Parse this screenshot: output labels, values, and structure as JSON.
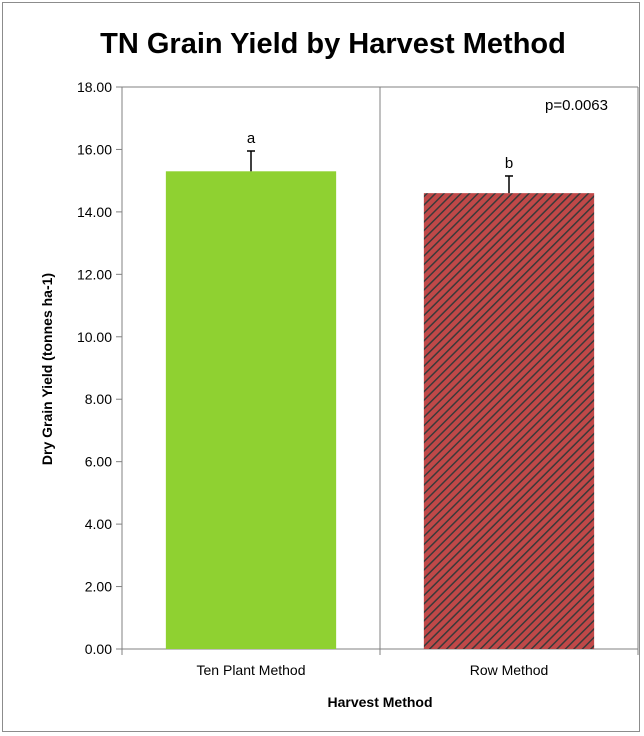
{
  "chart_data": {
    "type": "bar",
    "title": "TN Grain Yield by Harvest Method",
    "xlabel": "Harvest Method",
    "ylabel": "Dry Grain Yield (tonnes ha-1)",
    "categories": [
      "Ten Plant Method",
      "Row Method"
    ],
    "values": [
      15.3,
      14.6
    ],
    "errors": [
      0.65,
      0.55
    ],
    "significance_letters": [
      "a",
      "b"
    ],
    "annotation": "p=0.0063",
    "ylim": [
      0,
      18
    ],
    "ytick_step": 2,
    "ytick_labels": [
      "0.00",
      "2.00",
      "4.00",
      "6.00",
      "8.00",
      "10.00",
      "12.00",
      "14.00",
      "16.00",
      "18.00"
    ],
    "grid": "vertical",
    "legend": "none",
    "colors": {
      "ten_plant_bar": "#8fd131",
      "row_bar_base": "#c04848",
      "row_bar_stripe": "#3a3a3a",
      "axis": "#808080"
    }
  }
}
